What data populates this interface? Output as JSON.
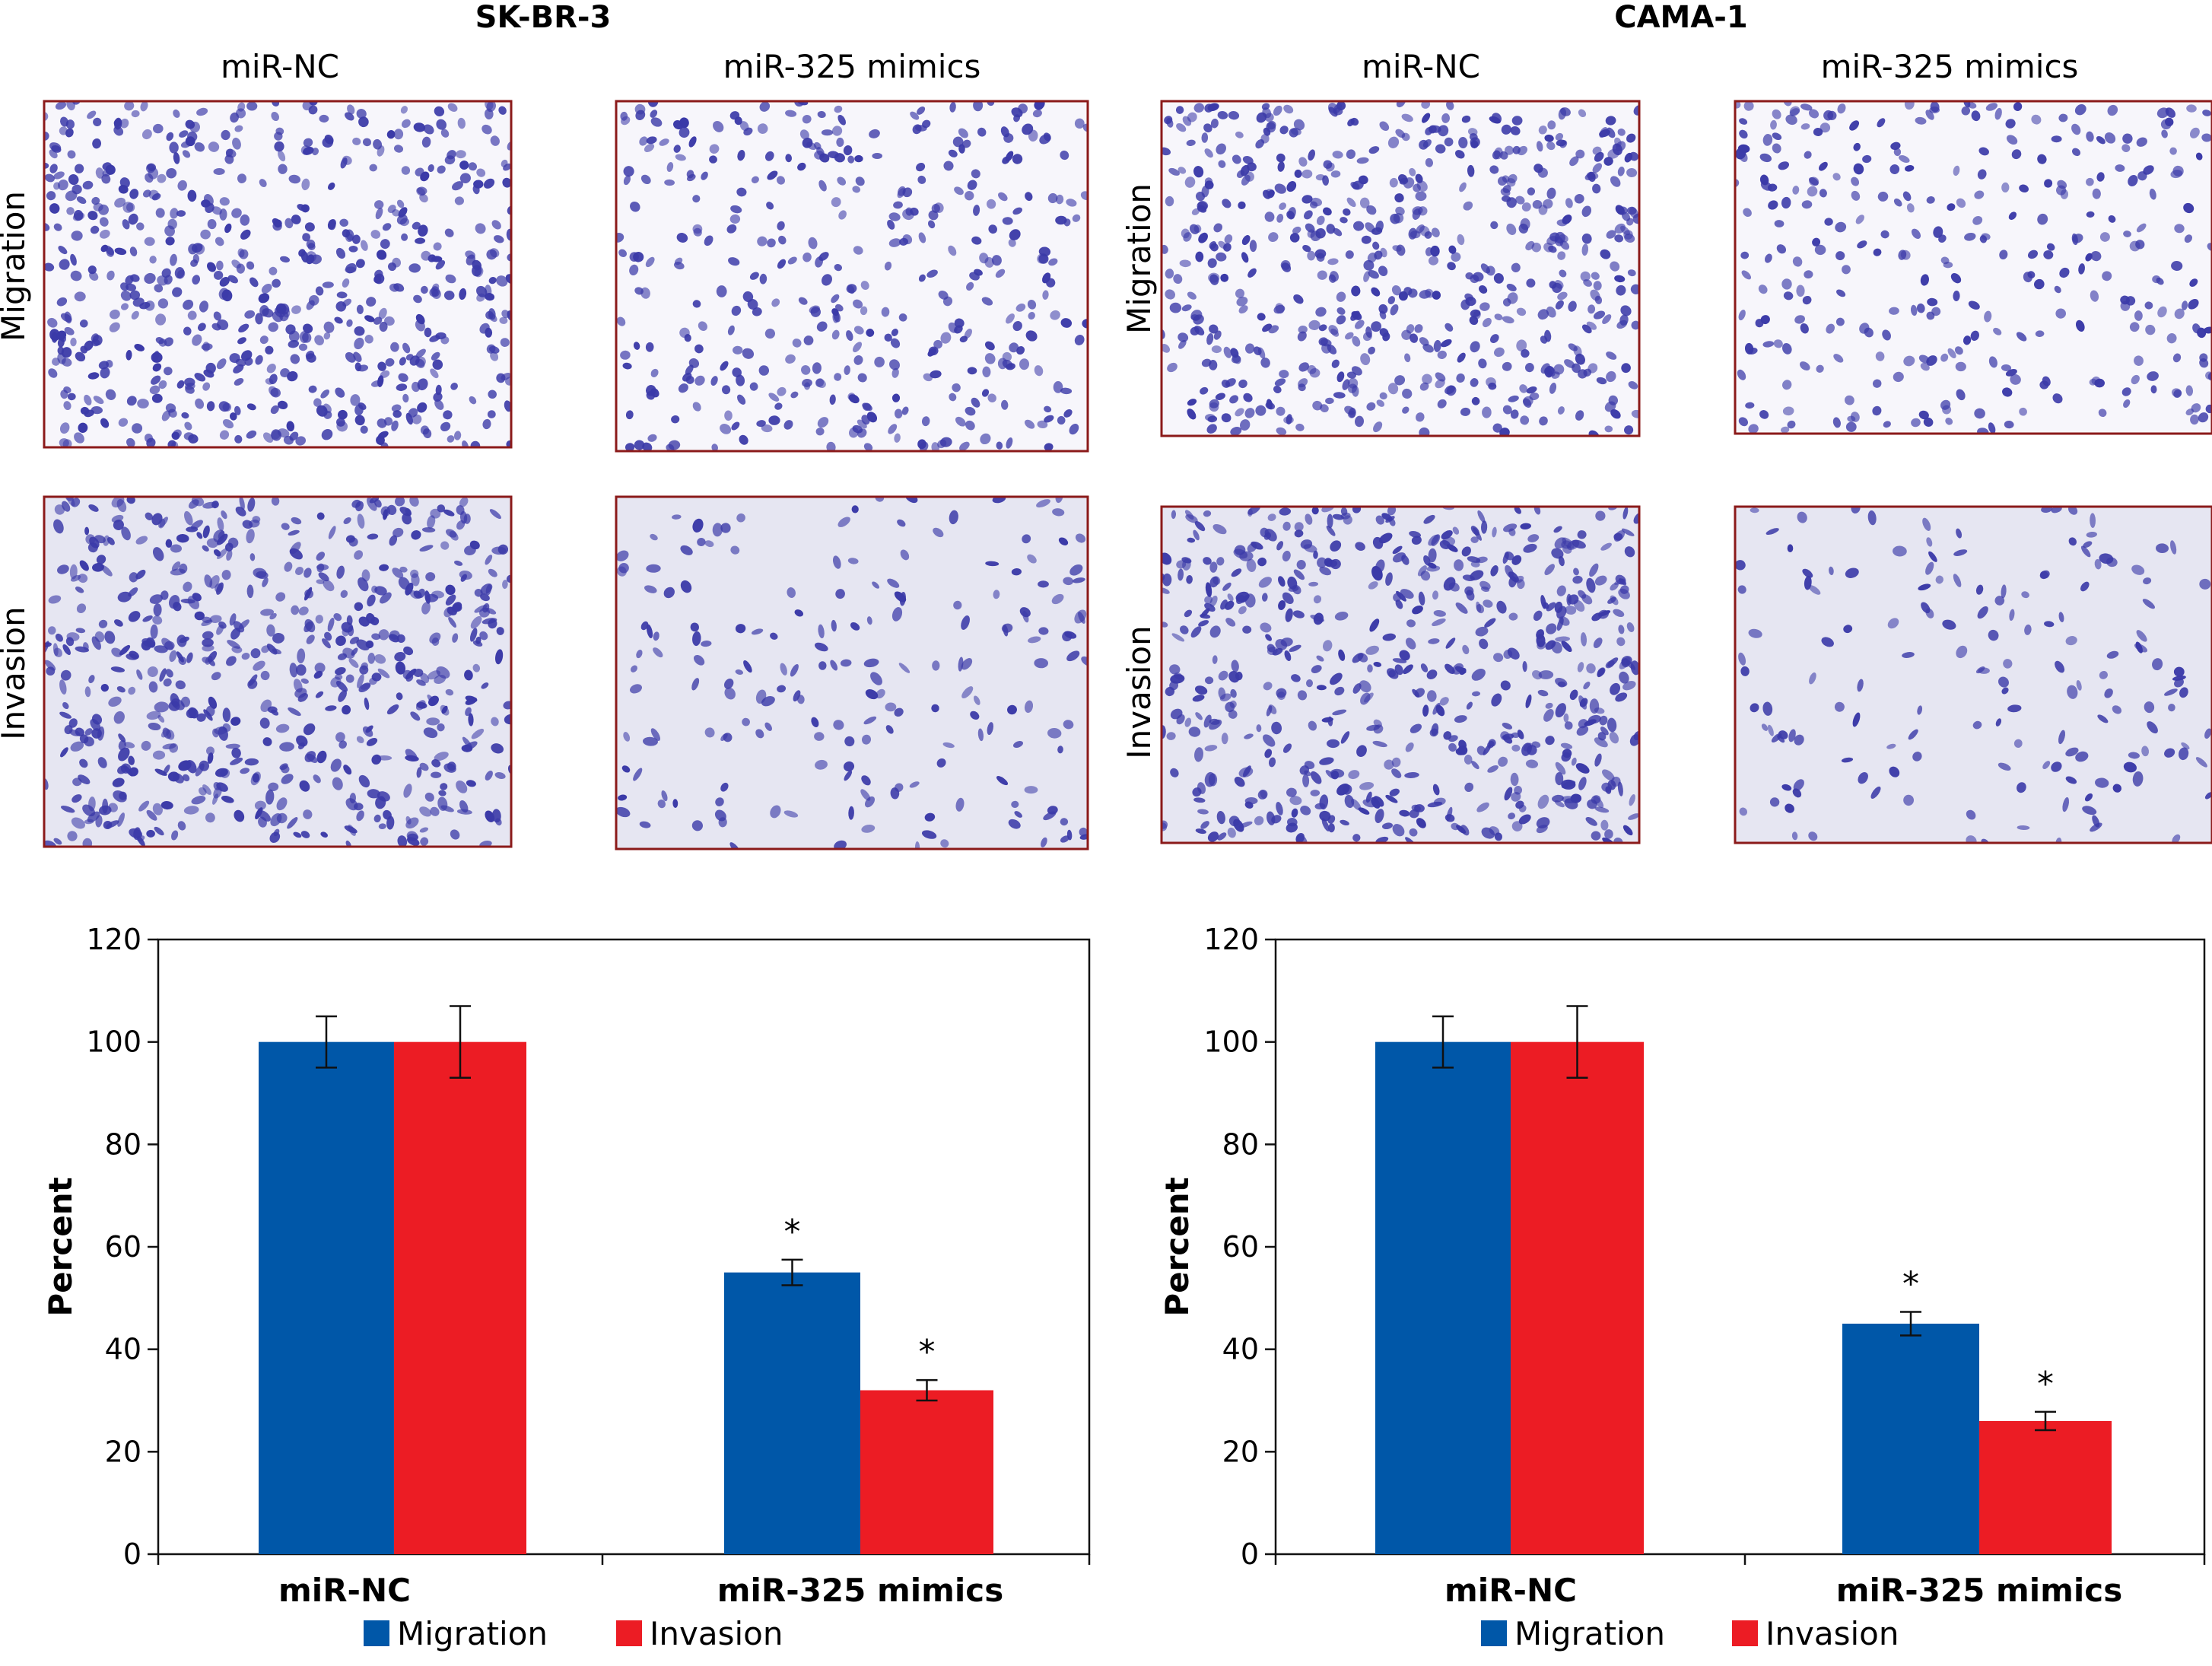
{
  "panels": [
    {
      "title": "SK-BR-3",
      "column_labels": [
        "miR-NC",
        "miR-325 mimics"
      ],
      "row_labels": [
        "Migration",
        "Invasion"
      ]
    },
    {
      "title": "CAMA-1",
      "column_labels": [
        "miR-NC",
        "miR-325 mimics"
      ],
      "row_labels": [
        "Migration",
        "Invasion"
      ]
    }
  ],
  "colors": {
    "migration": "#0057a8",
    "invasion": "#ec1c24",
    "frame": "#8b1a1a",
    "cell_dense": "#3b3aa8",
    "bg_migration": "#f7f6fb",
    "bg_invasion": "#e6e6f2"
  },
  "chart_data": [
    {
      "type": "bar",
      "title": "",
      "categories": [
        "miR-NC",
        "miR-325 mimics"
      ],
      "series": [
        {
          "name": "Migration",
          "values": [
            100,
            55
          ],
          "errors": [
            5,
            2.5
          ]
        },
        {
          "name": "Invasion",
          "values": [
            100,
            32
          ],
          "errors": [
            7,
            2
          ]
        }
      ],
      "significance": [
        [
          "",
          ""
        ],
        [
          "*",
          "*"
        ]
      ],
      "ylabel": "Percent",
      "xlabel": "",
      "ylim": [
        0,
        120
      ],
      "yticks": [
        0,
        20,
        40,
        60,
        80,
        100,
        120
      ],
      "legend": "bottom",
      "grid": false
    },
    {
      "type": "bar",
      "title": "",
      "categories": [
        "miR-NC",
        "miR-325 mimics"
      ],
      "series": [
        {
          "name": "Migration",
          "values": [
            100,
            45
          ],
          "errors": [
            5,
            2.3
          ]
        },
        {
          "name": "Invasion",
          "values": [
            100,
            26
          ],
          "errors": [
            7,
            1.8
          ]
        }
      ],
      "significance": [
        [
          "",
          ""
        ],
        [
          "*",
          "*"
        ]
      ],
      "ylabel": "Percent",
      "xlabel": "",
      "ylim": [
        0,
        120
      ],
      "yticks": [
        0,
        20,
        40,
        60,
        80,
        100,
        120
      ],
      "legend": "bottom",
      "grid": false
    }
  ]
}
